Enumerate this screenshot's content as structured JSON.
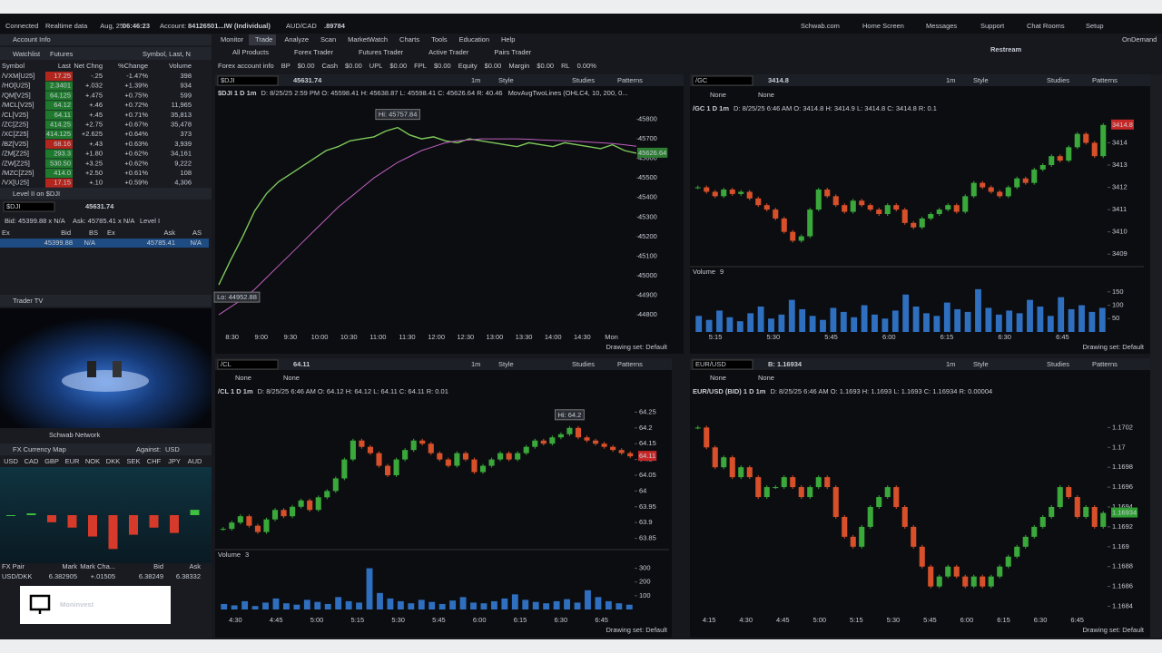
{
  "status": {
    "connected": "Connected",
    "realtime": "Realtime data",
    "date": "Aug, 25",
    "time": "06:46:23",
    "account_label": "Account:",
    "account": "84126501...IW (Individual)",
    "pair": "AUD/CAD",
    "pair_price": ".89784",
    "links": [
      "Schwab.com",
      "Home Screen",
      "Messages",
      "Support",
      "Chat Rooms",
      "Setup"
    ],
    "ondemand": "OnDemand"
  },
  "menu": [
    "Monitor",
    "Trade",
    "Analyze",
    "Scan",
    "MarketWatch",
    "Charts",
    "Tools",
    "Education",
    "Help"
  ],
  "sub_tabs": [
    "All Products",
    "Forex Trader",
    "Futures Trader",
    "Active Trader",
    "Pairs Trader"
  ],
  "account_row": [
    "Forex account info",
    "BP",
    "$0.00",
    "Cash",
    "$0.00",
    "UPL",
    "$0.00",
    "FPL",
    "$0.00",
    "Equity",
    "$0.00",
    "Margin",
    "$0.00",
    "RL",
    "0.00%"
  ],
  "left": {
    "account_info": "Account Info",
    "watchlist": {
      "title": "Watchlist",
      "list": "Futures",
      "columns_hint": "Symbol, Last, N",
      "columns": [
        "Symbol",
        "Last",
        "Net Chng",
        "%Change",
        "Volume"
      ],
      "rows": [
        {
          "cells": [
            "/VXM[U25]",
            "17.25",
            "-.25",
            "-1.47%",
            "398"
          ],
          "color": "#b3261e"
        },
        {
          "cells": [
            "/HO[U25]",
            "2.3401",
            "+.032",
            "+1.39%",
            "934"
          ],
          "color": "#1f7a2e"
        },
        {
          "cells": [
            "/QM[V25]",
            "64.125",
            "+.475",
            "+0.75%",
            "599"
          ],
          "color": "#1f7a2e"
        },
        {
          "cells": [
            "/MCL[V25]",
            "64.12",
            "+.46",
            "+0.72%",
            "11,965"
          ],
          "color": "#1f7a2e"
        },
        {
          "cells": [
            "/CL[V25]",
            "64.11",
            "+.45",
            "+0.71%",
            "35,813"
          ],
          "color": "#1f7a2e"
        },
        {
          "cells": [
            "/ZC[Z25]",
            "414.25",
            "+2.75",
            "+0.67%",
            "35,478"
          ],
          "color": "#1f7a2e"
        },
        {
          "cells": [
            "/XC[Z25]",
            "414.125",
            "+2.625",
            "+0.64%",
            "373"
          ],
          "color": "#1f7a2e"
        },
        {
          "cells": [
            "/BZ[V25]",
            "68.16",
            "+.43",
            "+0.63%",
            "3,939"
          ],
          "color": "#b3261e"
        },
        {
          "cells": [
            "/ZM[Z25]",
            "293.3",
            "+1.80",
            "+0.62%",
            "34,161"
          ],
          "color": "#1f7a2e"
        },
        {
          "cells": [
            "/ZW[Z25]",
            "530.50",
            "+3.25",
            "+0.62%",
            "9,222"
          ],
          "color": "#1f7a2e"
        },
        {
          "cells": [
            "/MZC[Z25]",
            "414.0",
            "+2.50",
            "+0.61%",
            "108"
          ],
          "color": "#1f7a2e"
        },
        {
          "cells": [
            "/VX[U25]",
            "17.15",
            "+.10",
            "+0.59%",
            "4,306"
          ],
          "color": "#b3261e"
        }
      ]
    },
    "level2": {
      "title": "Level II on $DJI",
      "symbol": "$DJI",
      "price": "45631.74",
      "bid": "Bid: 45399.88 x N/A",
      "ask": "Ask: 45785.41 x N/A",
      "level": "Level I",
      "columns": [
        "Ex",
        "Bid",
        "BS",
        "Ex",
        "Ask",
        "AS"
      ],
      "row": [
        "45399.88",
        "N/A",
        "45785.41",
        "N/A"
      ]
    },
    "trader_tv": {
      "title": "Trader TV",
      "channel": "Schwab Network"
    },
    "fx_map": {
      "title": "FX Currency Map",
      "against_label": "Against:",
      "against": "USD",
      "currencies": [
        "USD",
        "CAD",
        "GBP",
        "EUR",
        "NOK",
        "DKK",
        "SEK",
        "CHF",
        "JPY",
        "AUD"
      ],
      "values": [
        0,
        1,
        -4,
        -7,
        -12,
        -19,
        -11,
        -7,
        -10,
        3
      ],
      "ylim": [
        -22,
        6
      ],
      "up_color": "#3fbf3f",
      "down_color": "#d63a2a"
    },
    "fx_table": {
      "columns": [
        "FX Pair",
        "Mark",
        "Mark Cha...",
        "Bid",
        "Ask"
      ],
      "row": [
        "USD/DKK",
        "6.382905",
        "+.01505",
        "6.38249",
        "6.38332"
      ]
    }
  },
  "toolbar": {
    "timeframe": "1m",
    "style": "Style",
    "studies": "Studies",
    "patterns": "Patterns",
    "drawing_set": "Drawing set: Default",
    "none": "None"
  },
  "charts": [
    {
      "type": "line",
      "symbol": "$DJI",
      "last": "45631.74",
      "last_color": "#e0b34a",
      "header": "$DJI 1 D 1m",
      "info": "D: 8/25/25 2:59 PM  O: 45598.41  H: 45638.87  L: 45598.41  C: 45626.64  R: 40.46",
      "study": "MovAvgTwoLines (OHLC4, 10, 200, 0...",
      "hi_label": "Hi: 45757.84",
      "lo_label": "Lo: 44952.88",
      "price_label": "45626.64",
      "ylim": [
        44740,
        45900
      ],
      "yticks": [
        44800,
        44900,
        45000,
        45100,
        45200,
        45300,
        45400,
        45500,
        45600,
        45700,
        45800
      ],
      "xticks": [
        "8:30",
        "9:00",
        "9:30",
        "10:00",
        "10:30",
        "11:00",
        "11:30",
        "12:00",
        "12:30",
        "13:00",
        "13:30",
        "14:00",
        "14:30",
        "Mon"
      ],
      "series": [
        {
          "color": "#7ec85a",
          "values": [
            44952.88,
            45080,
            45200,
            45330,
            45420,
            45480,
            45520,
            45560,
            45600,
            45640,
            45660,
            45690,
            45700,
            45710,
            45740,
            45757.84,
            45720,
            45700,
            45710,
            45690,
            45680,
            45700,
            45690,
            45680,
            45670,
            45660,
            45680,
            45670,
            45660,
            45680,
            45670,
            45660,
            45650,
            45670,
            45640,
            45626.64
          ]
        },
        {
          "color": "#c060c0",
          "values": [
            44800,
            44840,
            44880,
            44930,
            44990,
            45050,
            45110,
            45170,
            45230,
            45290,
            45350,
            45400,
            45450,
            45500,
            45540,
            45580,
            45610,
            45640,
            45660,
            45680,
            45690,
            45695,
            45700,
            45700,
            45700,
            45700,
            45698,
            45695,
            45692,
            45690,
            45688,
            45684,
            45680,
            45676,
            45670,
            45662
          ]
        }
      ]
    },
    {
      "type": "candle",
      "symbol": "/GC",
      "last": "3414.8",
      "last_color": "#e0483a",
      "header": "/GC 1 D 1m",
      "info": "D: 8/25/25 6:46 AM  O: 3414.8  H: 3414.9  L: 3414.8  C: 3414.8  R: 0.1",
      "price_label": "3414.8",
      "up_color": "#3aa83a",
      "down_color": "#d8502a",
      "ylim": [
        3408.6,
        3415.2
      ],
      "yticks": [
        3409,
        3410,
        3411,
        3412,
        3413,
        3414
      ],
      "xticks": [
        "5:15",
        "5:30",
        "5:45",
        "6:00",
        "6:15",
        "6:30",
        "6:45"
      ],
      "values": [
        3412.0,
        3411.8,
        3411.6,
        3411.9,
        3411.7,
        3411.8,
        3411.5,
        3411.2,
        3411.0,
        3410.6,
        3410.0,
        3409.6,
        3409.8,
        3411.0,
        3411.9,
        3411.6,
        3411.2,
        3410.9,
        3411.4,
        3411.2,
        3411.0,
        3410.8,
        3411.2,
        3411.0,
        3410.4,
        3410.2,
        3410.6,
        3410.8,
        3411.0,
        3411.2,
        3410.9,
        3411.6,
        3412.2,
        3412.0,
        3411.8,
        3411.6,
        3412.0,
        3412.4,
        3412.2,
        3412.8,
        3413.0,
        3413.4,
        3413.2,
        3413.8,
        3414.4,
        3414.0,
        3413.4,
        3414.8
      ],
      "volume": {
        "label": "Volume",
        "last": "9",
        "color": "#2f6fc0",
        "ylim": [
          0,
          190
        ],
        "yticks": [
          50,
          100,
          150
        ],
        "values": [
          60,
          45,
          80,
          55,
          40,
          70,
          95,
          50,
          65,
          120,
          85,
          60,
          45,
          90,
          75,
          55,
          100,
          65,
          50,
          80,
          140,
          95,
          70,
          60,
          110,
          85,
          75,
          160,
          90,
          65,
          80,
          70,
          120,
          95,
          60,
          130,
          85,
          100,
          75,
          90
        ]
      }
    },
    {
      "type": "candle",
      "symbol": "/CL",
      "last": "64.11",
      "last_color": "#e0483a",
      "header": "/CL 1 D 1m",
      "info": "D: 8/25/25 6:46 AM  O: 64.12  H: 64.12  L: 64.11  C: 64.11  R: 0.01",
      "hi_label": "Hi: 64.2",
      "price_label": "64.11",
      "up_color": "#3aa83a",
      "down_color": "#d8502a",
      "ylim": [
        63.82,
        64.28
      ],
      "yticks": [
        63.85,
        63.9,
        63.95,
        64,
        64.05,
        64.1,
        64.15,
        64.2,
        64.25
      ],
      "xticks": [
        "4:30",
        "4:45",
        "5:00",
        "5:15",
        "5:30",
        "5:45",
        "6:00",
        "6:15",
        "6:30",
        "6:45"
      ],
      "values": [
        63.88,
        63.9,
        63.92,
        63.89,
        63.87,
        63.91,
        63.94,
        63.92,
        63.95,
        63.97,
        63.94,
        63.98,
        64.0,
        64.04,
        64.1,
        64.16,
        64.14,
        64.12,
        64.08,
        64.05,
        64.1,
        64.13,
        64.16,
        64.15,
        64.12,
        64.1,
        64.08,
        64.12,
        64.1,
        64.06,
        64.08,
        64.1,
        64.12,
        64.1,
        64.12,
        64.14,
        64.16,
        64.15,
        64.17,
        64.18,
        64.2,
        64.17,
        64.16,
        64.15,
        64.14,
        64.13,
        64.12,
        64.11
      ],
      "volume": {
        "label": "Volume",
        "last": "3",
        "color": "#2f6fc0",
        "ylim": [
          0,
          330
        ],
        "yticks": [
          100,
          200,
          300
        ],
        "values": [
          40,
          30,
          60,
          25,
          50,
          80,
          45,
          35,
          70,
          55,
          40,
          90,
          60,
          50,
          300,
          120,
          80,
          60,
          45,
          70,
          55,
          40,
          65,
          90,
          50,
          45,
          60,
          80,
          110,
          70,
          55,
          45,
          60,
          75,
          50,
          140,
          90,
          60,
          45,
          35
        ]
      }
    },
    {
      "type": "candle",
      "symbol": "EUR/USD",
      "last": "B: 1.16934",
      "last_color": "#4fd24f",
      "header": "EUR/USD (BID) 1 D 1m",
      "info": "D: 8/25/25 6:46 AM  O: 1.1693  H: 1.1693  L: 1.1693  C: 1.16934  R: 0.00004",
      "price_label": "1.16934",
      "up_color": "#3aa83a",
      "down_color": "#d8502a",
      "ylim": [
        1.16835,
        1.17045
      ],
      "yticks": [
        1.1684,
        1.1686,
        1.1688,
        1.169,
        1.1692,
        1.1694,
        1.1696,
        1.1698,
        1.17,
        1.1702
      ],
      "xticks": [
        "4:15",
        "4:30",
        "4:45",
        "5:00",
        "5:15",
        "5:30",
        "5:45",
        "6:00",
        "6:15",
        "6:30",
        "6:45"
      ],
      "values": [
        1.1702,
        1.17,
        1.1698,
        1.1699,
        1.1697,
        1.1698,
        1.1697,
        1.1695,
        1.1696,
        1.1696,
        1.1697,
        1.1696,
        1.1695,
        1.1696,
        1.1697,
        1.1696,
        1.1693,
        1.1691,
        1.169,
        1.1692,
        1.1694,
        1.1695,
        1.1696,
        1.1694,
        1.1692,
        1.169,
        1.1688,
        1.1686,
        1.1687,
        1.1688,
        1.1687,
        1.1686,
        1.1687,
        1.1686,
        1.1687,
        1.1688,
        1.1689,
        1.169,
        1.1691,
        1.1692,
        1.1693,
        1.1694,
        1.1696,
        1.1695,
        1.1693,
        1.1694,
        1.1692,
        1.16934
      ]
    }
  ],
  "overlays": {
    "restream": "Restream",
    "moninvest": "Moninvest"
  }
}
